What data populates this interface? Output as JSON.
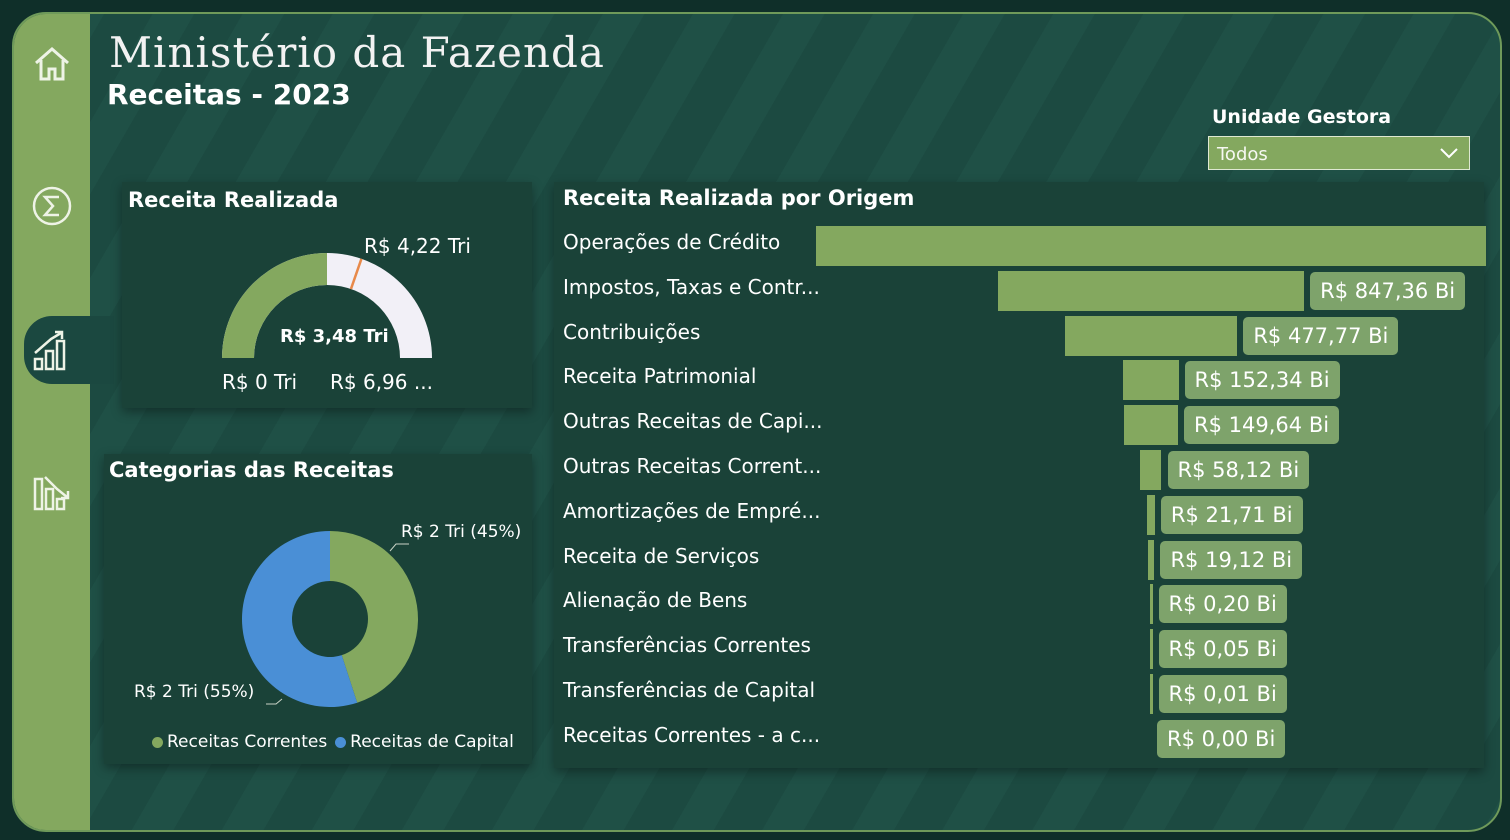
{
  "header": {
    "title": "Ministério da Fazenda",
    "subtitle": "Receitas - 2023"
  },
  "sidebar": {
    "items": [
      {
        "icon": "home-icon"
      },
      {
        "icon": "sigma-icon"
      },
      {
        "icon": "bar-chart-icon",
        "active": true
      },
      {
        "icon": "analytics-icon"
      }
    ]
  },
  "slicer": {
    "label": "Unidade Gestora",
    "value": "Todos"
  },
  "gauge": {
    "title": "Receita Realizada",
    "value_label": "R$ 3,48 Tri",
    "target_label": "R$ 4,22 Tri",
    "min_label": "R$ 0 Tri",
    "max_label": "R$ 6,96 ...",
    "value": 3.48,
    "target": 4.22,
    "min": 0,
    "max": 6.96,
    "fill_color": "#84a85f",
    "track_color": "#f2f0f7",
    "target_color": "#e8894a"
  },
  "donut": {
    "title": "Categorias das Receitas",
    "slices": [
      {
        "name": "Receitas Correntes",
        "percent": 45,
        "label": "R$ 2 Tri (45%)",
        "color": "#84a85f"
      },
      {
        "name": "Receitas de Capital",
        "percent": 55,
        "label": "R$ 2 Tri (55%)",
        "color": "#4a8fd6"
      }
    ]
  },
  "funnel": {
    "title": "Receita Realizada por Origem",
    "items": [
      {
        "label": "Operações de Crédito",
        "value": 1854.0,
        "value_label": ""
      },
      {
        "label": "Impostos, Taxas e Contr...",
        "value": 847.36,
        "value_label": "R$ 847,36 Bi"
      },
      {
        "label": "Contribuições",
        "value": 477.77,
        "value_label": "R$ 477,77 Bi"
      },
      {
        "label": "Receita Patrimonial",
        "value": 152.34,
        "value_label": "R$ 152,34 Bi"
      },
      {
        "label": "Outras Receitas de Capi...",
        "value": 149.64,
        "value_label": "R$ 149,64 Bi"
      },
      {
        "label": "Outras Receitas Corrent...",
        "value": 58.12,
        "value_label": "R$ 58,12 Bi"
      },
      {
        "label": "Amortizações de Empré...",
        "value": 21.71,
        "value_label": "R$ 21,71 Bi"
      },
      {
        "label": "Receita de Serviços",
        "value": 19.12,
        "value_label": "R$ 19,12 Bi"
      },
      {
        "label": "Alienação de Bens",
        "value": 0.2,
        "value_label": "R$ 0,20 Bi"
      },
      {
        "label": "Transferências Correntes",
        "value": 0.05,
        "value_label": "R$ 0,05 Bi"
      },
      {
        "label": "Transferências de Capital",
        "value": 0.01,
        "value_label": "R$ 0,01 Bi"
      },
      {
        "label": "Receitas Correntes - a c...",
        "value": 0.0,
        "value_label": "R$ 0,00 Bi"
      }
    ]
  },
  "chart_data": [
    {
      "type": "gauge",
      "title": "Receita Realizada",
      "value": 3.48,
      "target": 4.22,
      "min": 0,
      "max": 6.96,
      "unit": "R$ Tri"
    },
    {
      "type": "pie",
      "title": "Categorias das Receitas",
      "categories": [
        "Receitas Correntes",
        "Receitas de Capital"
      ],
      "values": [
        45,
        55
      ],
      "labels": [
        "R$ 2 Tri (45%)",
        "R$ 2 Tri (55%)"
      ],
      "legend": "bottom"
    },
    {
      "type": "bar",
      "title": "Receita Realizada por Origem",
      "categories": [
        "Operações de Crédito",
        "Impostos, Taxas e Contr...",
        "Contribuições",
        "Receita Patrimonial",
        "Outras Receitas de Capi...",
        "Outras Receitas Corrent...",
        "Amortizações de Empré...",
        "Receita de Serviços",
        "Alienação de Bens",
        "Transferências Correntes",
        "Transferências de Capital",
        "Receitas Correntes - a c..."
      ],
      "values": [
        1854.0,
        847.36,
        477.77,
        152.34,
        149.64,
        58.12,
        21.71,
        19.12,
        0.2,
        0.05,
        0.01,
        0.0
      ],
      "unit": "R$ Bi"
    }
  ]
}
